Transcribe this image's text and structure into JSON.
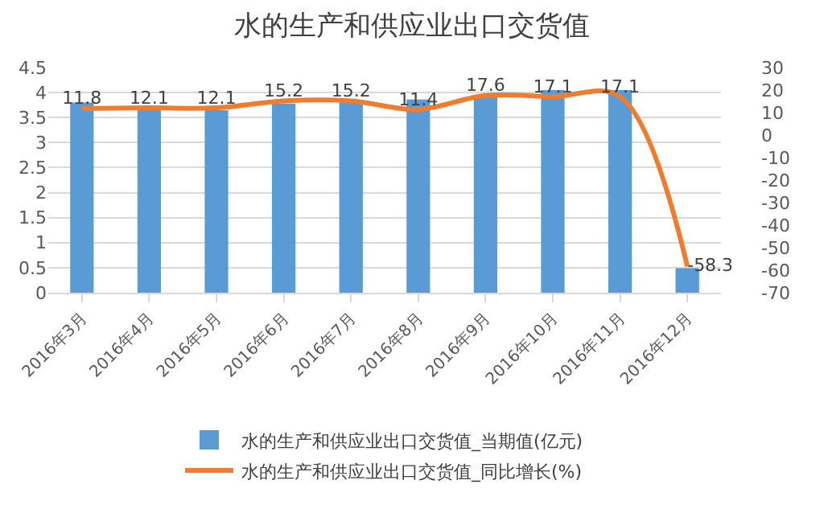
{
  "chart_data": {
    "type": "bar",
    "title": "水的生产和供应业出口交货值",
    "categories": [
      "2016年3月",
      "2016年4月",
      "2016年5月",
      "2016年6月",
      "2016年7月",
      "2016年8月",
      "2016年9月",
      "2016年10月",
      "2016年11月",
      "2016年12月"
    ],
    "series": [
      {
        "name": "水的生产和供应业出口交货值_当期值(亿元)",
        "color": "#5b9bd5",
        "values": [
          3.8,
          3.65,
          3.65,
          3.78,
          3.8,
          3.86,
          3.93,
          4.05,
          4.05,
          0.49
        ]
      },
      {
        "name": "水的生产和供应业出口交货值_同比增长(%)",
        "color": "#ed7d31",
        "type": "line",
        "axis": "y2",
        "values": [
          11.8,
          12.1,
          12.1,
          15.2,
          15.2,
          11.4,
          17.6,
          17.1,
          17.1,
          -58.3
        ],
        "value_labels": [
          "11.8",
          "12.1",
          "12.1",
          "15.2",
          "15.2",
          "11.4",
          "17.6",
          "17.1",
          "17.1",
          "-58.3"
        ]
      }
    ],
    "ylim": [
      0,
      4.5
    ],
    "yticks": [
      0,
      0.5,
      1,
      1.5,
      2,
      2.5,
      3,
      3.5,
      4,
      4.5
    ],
    "y2lim": [
      -70,
      30
    ],
    "y2ticks": [
      -70,
      -60,
      -50,
      -40,
      -30,
      -20,
      -10,
      0,
      10,
      20,
      30
    ],
    "grid": "y",
    "legend": "bottom",
    "marker": "none",
    "line_style": "solid"
  }
}
